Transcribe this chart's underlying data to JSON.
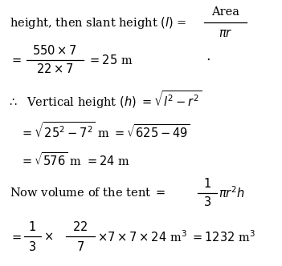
{
  "bg_color": "#ffffff",
  "text_color": "#000000",
  "figsize": [
    3.51,
    3.32
  ],
  "dpi": 100,
  "fs": 10.5,
  "lines": {
    "line1_left": "height, then slant height $(l)$ =",
    "line1_num": "Area",
    "line1_den": "$\\pi r$",
    "line2_eq": "=",
    "line2_num": "$550 \\times 7$",
    "line2_den": "$22 \\times 7$",
    "line2_right": "$= 25$ m",
    "line2_dot": "$\\cdot$",
    "line3": "$\\therefore$  Vertical height $(h) = \\sqrt{l^2 - r^2}$",
    "line4": "$= \\sqrt{25^2 - 7^2}$ m $= \\sqrt{625-49}$",
    "line5": "$= \\sqrt{576}$ m $= 24$ m",
    "line6_left": "Now volume of the tent $=$",
    "line6_frac_num": "$1$",
    "line6_frac_den": "$3$",
    "line6_right": "$\\pi r^2 h$",
    "line7_eq": "$=$",
    "line7_f1n": "$1$",
    "line7_f1d": "$3$",
    "line7_mid": "$\\times$",
    "line7_f2n": "$22$",
    "line7_f2d": "$7$",
    "line7_right": "$\\times 7 \\times 7 \\times 24$ m$^3$ $= 1232$ m$^3$"
  }
}
